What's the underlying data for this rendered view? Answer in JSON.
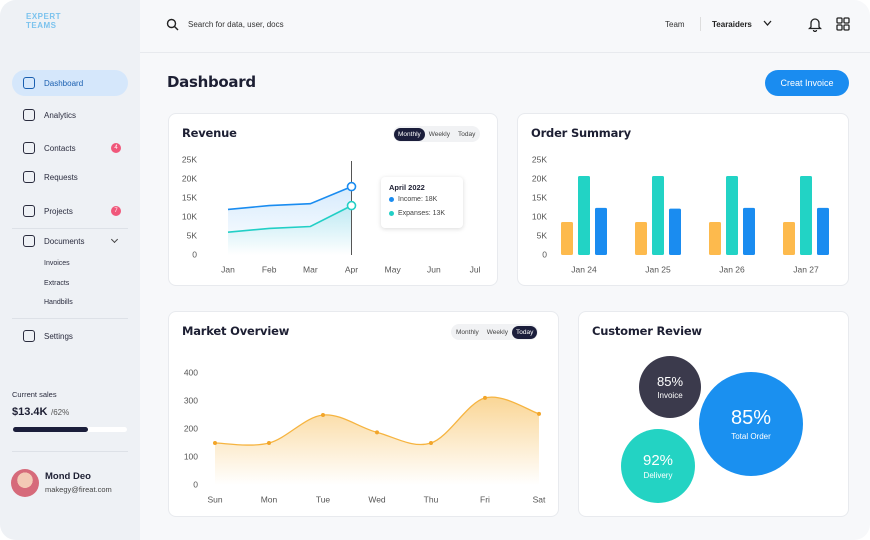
{
  "sidebar": {
    "logo": "EXPERT TEAMS",
    "active": "Dashboard",
    "nav": [
      {
        "label": "Dashboard"
      },
      {
        "label": "Analytics"
      },
      {
        "label": "Contacts",
        "badge": 4
      },
      {
        "label": "Requests"
      },
      {
        "label": "Projects",
        "badge": 7
      },
      {
        "label": "Documents",
        "children": [
          "Invoices",
          "Extracts",
          "Handbills"
        ]
      },
      {
        "label": "Settings"
      }
    ],
    "current_sales": {
      "label": "Current sales",
      "value": "$13.4K",
      "target": "/62%",
      "progress": 66
    },
    "user": {
      "name": "Mond Deo",
      "email": "makegy@fireat.com"
    }
  },
  "header": {
    "search_placeholder": "Search for data, user, docs",
    "team_label": "Team",
    "team": "Tearaiders"
  },
  "page": {
    "title": "Dashboard",
    "button": "Creat Invoice"
  },
  "revenue": {
    "type": "line",
    "title": "Revenue",
    "tabs": [
      "Monthly",
      "Weekly",
      "Today"
    ],
    "active_tab": "Monthly",
    "categories": [
      "Jan",
      "Feb",
      "Mar",
      "Apr",
      "May",
      "Jun",
      "Jul"
    ],
    "ylim": [
      0,
      25000
    ],
    "yticks": [
      0,
      {
        "value": 5000,
        "label": "5K"
      },
      {
        "value": 10000,
        "label": "10K"
      },
      {
        "value": 15000,
        "label": "15K"
      },
      {
        "value": 20000,
        "label": "20K"
      },
      {
        "value": 25000,
        "label": "25K"
      }
    ],
    "series": [
      {
        "name": "Income",
        "color": "#1a8cf0",
        "values": [
          12000,
          13000,
          13500,
          18000,
          null,
          null,
          null
        ]
      },
      {
        "name": "Expanses",
        "color": "#22cfc6",
        "values": [
          6000,
          7000,
          7500,
          13000,
          null,
          null,
          null
        ]
      }
    ],
    "tooltip": {
      "title": "April 2022",
      "lines": [
        "Income: 18K",
        "Expanses: 13K"
      ]
    }
  },
  "order_summary": {
    "type": "bar",
    "title": "Order Summary",
    "categories": [
      "Jan 24",
      "Jan 25",
      "Jan 26",
      "Jan 27"
    ],
    "ylim": [
      0,
      25000
    ],
    "yticks": [
      0,
      {
        "value": 5000,
        "label": "5K"
      },
      {
        "value": 10000,
        "label": "10K"
      },
      {
        "value": 15000,
        "label": "15K"
      },
      {
        "value": 20000,
        "label": "20K"
      },
      {
        "value": 25000,
        "label": "25K"
      }
    ],
    "series": [
      {
        "color": "#fdba4d",
        "values": [
          8700,
          8700,
          8700,
          8700
        ]
      },
      {
        "color": "#22d3c5",
        "values": [
          20800,
          20800,
          20800,
          20800
        ]
      },
      {
        "color": "#1a8cf0",
        "values": [
          12400,
          12200,
          12400,
          12400
        ]
      }
    ]
  },
  "market_overview": {
    "type": "area",
    "title": "Market Overview",
    "tabs": [
      "Monthly",
      "Weekly",
      "Today"
    ],
    "active_tab": "Today",
    "categories": [
      "Sun",
      "Mon",
      "Tue",
      "Wed",
      "Thu",
      "Fri",
      "Sat"
    ],
    "ylim": [
      0,
      400
    ],
    "yticks": [
      0,
      100,
      200,
      300,
      400
    ],
    "color": "#f6b440",
    "values": [
      150,
      150,
      250,
      188,
      150,
      311,
      254
    ]
  },
  "customer_review": {
    "type": "bubble",
    "title": "Customer Review",
    "categories": [
      "Invoice",
      "Delivery",
      "Total Order"
    ],
    "values": [
      85,
      92,
      85
    ],
    "value_labels": [
      "85%",
      "92%",
      "85%"
    ],
    "colors": [
      "#3b3a4c",
      "#23d3c3",
      "#1a90f0"
    ]
  }
}
